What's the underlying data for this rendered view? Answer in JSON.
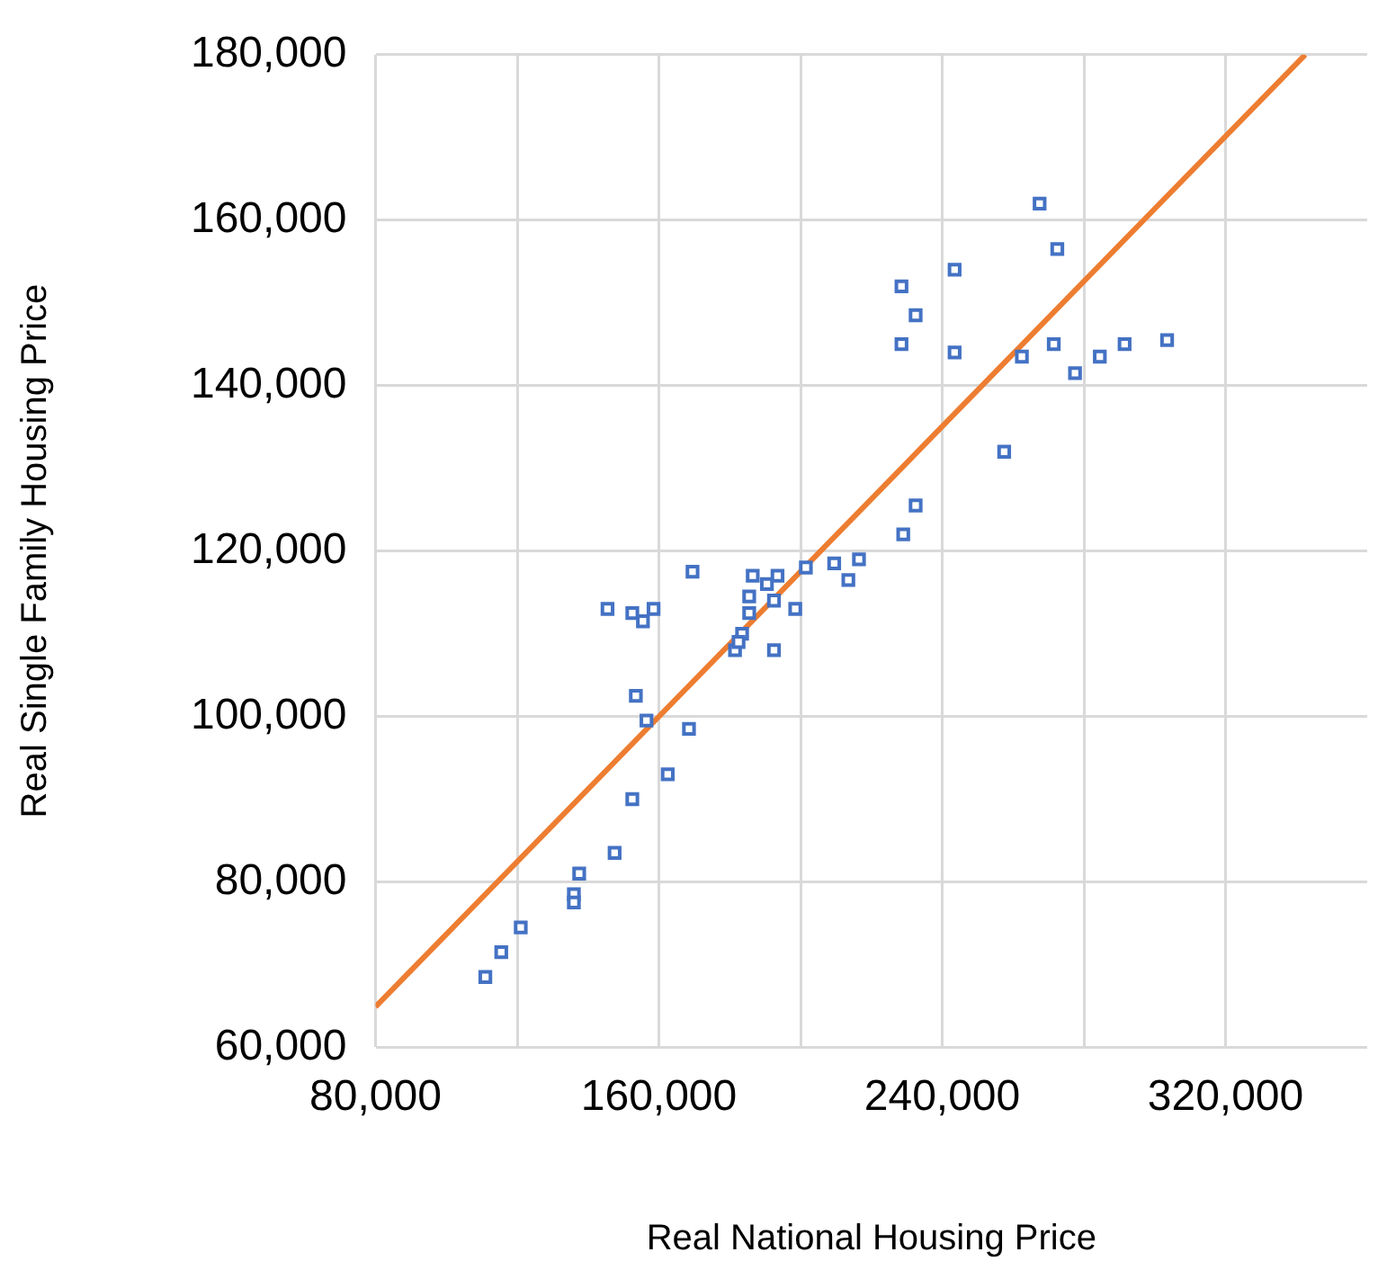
{
  "chart_data": {
    "type": "scatter",
    "xlabel": "Real National Housing Price",
    "ylabel": "Real Single Family Housing Price",
    "xlim": [
      80000,
      360000
    ],
    "xticks": [
      {
        "value": 80000,
        "label": "80,000"
      },
      {
        "value": 120000,
        "label": null
      },
      {
        "value": 160000,
        "label": "160,000"
      },
      {
        "value": 200000,
        "label": null
      },
      {
        "value": 240000,
        "label": "240,000"
      },
      {
        "value": 280000,
        "label": null
      },
      {
        "value": 320000,
        "label": "320,000"
      }
    ],
    "ylim": [
      60000,
      180000
    ],
    "yticks": [
      {
        "value": 60000,
        "label": "60,000"
      },
      {
        "value": 80000,
        "label": "80,000"
      },
      {
        "value": 100000,
        "label": "100,000"
      },
      {
        "value": 120000,
        "label": "120,000"
      },
      {
        "value": 140000,
        "label": "140,000"
      },
      {
        "value": 160000,
        "label": "160,000"
      },
      {
        "value": 180000,
        "label": "180,000"
      }
    ],
    "grid": true,
    "legend": false,
    "series": [
      {
        "color": "#4472c4",
        "marker": "square",
        "x": [
          111000,
          115500,
          121000,
          136000,
          136000,
          137500,
          147500,
          152500,
          162500,
          168500,
          156500,
          153500,
          145500,
          152500,
          155500,
          158500,
          169500,
          181500,
          183500,
          182500,
          185500,
          185500,
          186500,
          190500,
          193500,
          192500,
          192500,
          198500,
          201500,
          209500,
          213500,
          216500,
          229000,
          232500,
          257500,
          228500,
          228500,
          232500,
          243500,
          243500,
          262500,
          267500,
          271500,
          272500,
          277500,
          284500,
          291500,
          303500
        ],
        "values": [
          68500,
          71500,
          74500,
          78500,
          77500,
          81000,
          83500,
          90000,
          93000,
          98500,
          99500,
          102500,
          113000,
          112500,
          111500,
          113000,
          117500,
          108000,
          110000,
          109000,
          112500,
          114500,
          117000,
          116000,
          117000,
          114000,
          108000,
          113000,
          118000,
          118500,
          116500,
          119000,
          122000,
          125500,
          132000,
          145000,
          152000,
          148500,
          154000,
          144000,
          143500,
          162000,
          145000,
          156500,
          141500,
          143500,
          145000,
          145500
        ]
      },
      {
        "type": "line",
        "color": "#ed7d31",
        "marker": "none",
        "x": [
          80000,
          342500
        ],
        "values": [
          64900,
          180000
        ]
      }
    ]
  }
}
